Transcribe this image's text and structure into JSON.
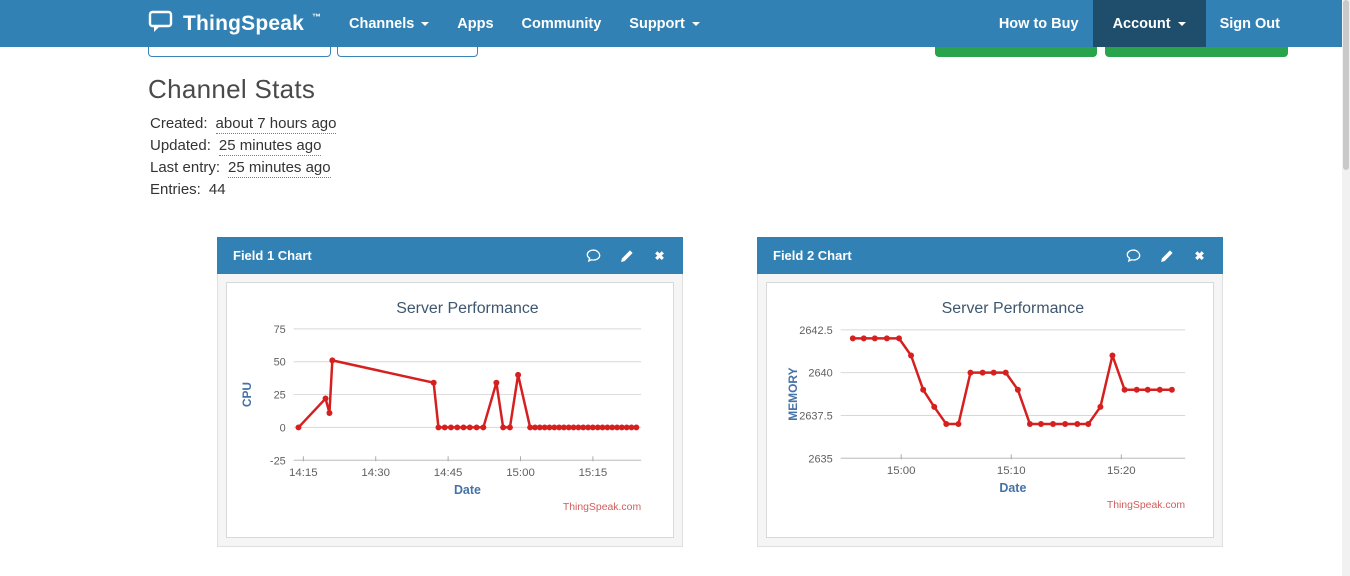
{
  "navbar": {
    "brand": "ThingSpeak",
    "brand_tm": "™",
    "items": [
      {
        "label": "Channels",
        "has_dropdown": true
      },
      {
        "label": "Apps",
        "has_dropdown": false
      },
      {
        "label": "Community",
        "has_dropdown": false
      },
      {
        "label": "Support",
        "has_dropdown": true
      }
    ],
    "right_items": [
      {
        "label": "How to Buy",
        "has_dropdown": false,
        "active": false
      },
      {
        "label": "Account",
        "has_dropdown": true,
        "active": true
      },
      {
        "label": "Sign Out",
        "has_dropdown": false,
        "active": false
      }
    ]
  },
  "page": {
    "title": "Channel Stats",
    "stats": [
      {
        "label": "Created:",
        "value": "about 7 hours ago"
      },
      {
        "label": "Updated:",
        "value": "25 minutes ago"
      },
      {
        "label": "Last entry:",
        "value": "25 minutes ago"
      },
      {
        "label": "Entries:",
        "value": "44"
      }
    ]
  },
  "panels": [
    {
      "title": "Field 1 Chart",
      "icons": [
        "comment-icon",
        "edit-pencil-icon",
        "close-icon"
      ]
    },
    {
      "title": "Field 2 Chart",
      "icons": [
        "comment-icon",
        "edit-pencil-icon",
        "close-icon"
      ]
    }
  ],
  "colors": {
    "navbar_blue": "#3181b4",
    "navbar_active_dark": "#1e4e6b",
    "button_green": "#2aa44c",
    "series_red": "#d62020",
    "chart_title_color": "#3e576f",
    "axis_title_blue": "#4572a7",
    "tick_label_gray": "#606060",
    "credits_red": "#d25c5c"
  },
  "chart_data": [
    {
      "type": "line",
      "title": "Server Performance",
      "xlabel": "Date",
      "ylabel": "CPU",
      "credits": "ThingSpeak.com",
      "series_color": "#d62020",
      "grid": true,
      "legend": "none",
      "x_unit": "minutes after 14:00",
      "xlim": [
        13,
        85
      ],
      "ylim": [
        -25,
        75
      ],
      "x_ticks": [
        {
          "t": 15,
          "label": "14:15"
        },
        {
          "t": 30,
          "label": "14:30"
        },
        {
          "t": 45,
          "label": "14:45"
        },
        {
          "t": 60,
          "label": "15:00"
        },
        {
          "t": 75,
          "label": "15:15"
        }
      ],
      "y_ticks": [
        {
          "v": 75,
          "label": "75"
        },
        {
          "v": 50,
          "label": "50"
        },
        {
          "v": 25,
          "label": "25"
        },
        {
          "v": 0,
          "label": "0"
        },
        {
          "v": -25,
          "label": "-25"
        }
      ],
      "points": [
        [
          14,
          0
        ],
        [
          19.6,
          22
        ],
        [
          20.4,
          11
        ],
        [
          21,
          51
        ],
        [
          42,
          34
        ],
        [
          43,
          0
        ],
        [
          44.3,
          0
        ],
        [
          45.6,
          0
        ],
        [
          46.9,
          0
        ],
        [
          48.2,
          0
        ],
        [
          49.5,
          0
        ],
        [
          50.9,
          0
        ],
        [
          52.3,
          0
        ],
        [
          55,
          34
        ],
        [
          56.4,
          0
        ],
        [
          57.8,
          0
        ],
        [
          59.5,
          40
        ],
        [
          62,
          0
        ],
        [
          63,
          0
        ],
        [
          64,
          0
        ],
        [
          65,
          0
        ],
        [
          66,
          0
        ],
        [
          67,
          0
        ],
        [
          68,
          0
        ],
        [
          69,
          0
        ],
        [
          70,
          0
        ],
        [
          71,
          0
        ],
        [
          72,
          0
        ],
        [
          73,
          0
        ],
        [
          74,
          0
        ],
        [
          75,
          0
        ],
        [
          76,
          0
        ],
        [
          77,
          0
        ],
        [
          78,
          0
        ],
        [
          79,
          0
        ],
        [
          80,
          0
        ],
        [
          81,
          0
        ],
        [
          82,
          0
        ],
        [
          83,
          0
        ],
        [
          84,
          0
        ]
      ]
    },
    {
      "type": "line",
      "title": "Server Performance",
      "xlabel": "Date",
      "ylabel": "MEMORY",
      "credits": "ThingSpeak.com",
      "series_color": "#d62020",
      "grid": true,
      "legend": "none",
      "x_unit": "minutes after 14:00",
      "xlim": [
        54.5,
        85.8
      ],
      "ylim": [
        2635,
        2642.5
      ],
      "x_ticks": [
        {
          "t": 60,
          "label": "15:00"
        },
        {
          "t": 70,
          "label": "15:10"
        },
        {
          "t": 80,
          "label": "15:20"
        }
      ],
      "y_ticks": [
        {
          "v": 2642.5,
          "label": "2642.5"
        },
        {
          "v": 2640,
          "label": "2640"
        },
        {
          "v": 2637.5,
          "label": "2637.5"
        },
        {
          "v": 2635,
          "label": "2635"
        }
      ],
      "points": [
        [
          55.6,
          2642
        ],
        [
          56.6,
          2642
        ],
        [
          57.6,
          2642
        ],
        [
          58.7,
          2642
        ],
        [
          59.8,
          2642
        ],
        [
          60.9,
          2641
        ],
        [
          62,
          2639
        ],
        [
          63,
          2638
        ],
        [
          64.1,
          2637
        ],
        [
          65.2,
          2637
        ],
        [
          66.3,
          2640
        ],
        [
          67.4,
          2640
        ],
        [
          68.4,
          2640
        ],
        [
          69.5,
          2640
        ],
        [
          70.6,
          2639
        ],
        [
          71.7,
          2637
        ],
        [
          72.7,
          2637
        ],
        [
          73.8,
          2637
        ],
        [
          74.9,
          2637
        ],
        [
          76,
          2637
        ],
        [
          77,
          2637
        ],
        [
          78.1,
          2638
        ],
        [
          79.2,
          2641
        ],
        [
          80.3,
          2639
        ],
        [
          81.4,
          2639
        ],
        [
          82.4,
          2639
        ],
        [
          83.5,
          2639
        ],
        [
          84.6,
          2639
        ]
      ]
    }
  ]
}
